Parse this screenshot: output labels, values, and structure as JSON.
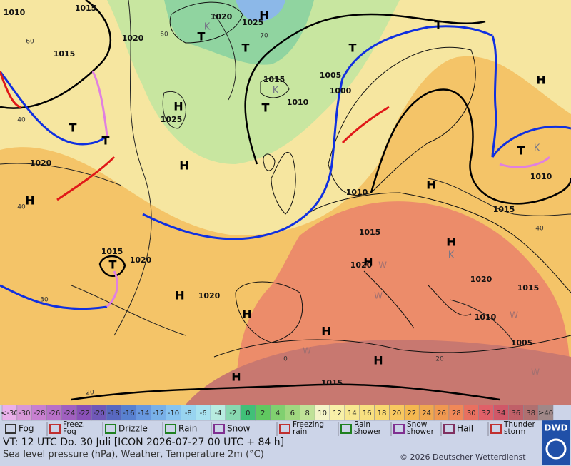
{
  "map": {
    "pressure_labels": [
      "1015",
      "1010",
      "1020",
      "1025",
      "1020",
      "1015",
      "1015",
      "1005",
      "1000",
      "1010",
      "1025",
      "1020",
      "1010",
      "1015",
      "1010",
      "1015",
      "1015",
      "1020",
      "1020",
      "1020",
      "1015",
      "1020",
      "1010",
      "1005",
      "1015"
    ],
    "isotherm_labels": [
      "40",
      "40",
      "30",
      "20",
      "60",
      "60",
      "70",
      "40",
      "20",
      "0"
    ],
    "system_labels": [
      "H",
      "T",
      "T",
      "H",
      "T",
      "T",
      "H",
      "H",
      "T",
      "K",
      "T",
      "T",
      "H",
      "H",
      "T",
      "K",
      "H",
      "K",
      "T",
      "H",
      "H",
      "H",
      "H",
      "H",
      "K",
      "H",
      "W",
      "W",
      "W",
      "W",
      "W"
    ]
  },
  "colorbar": [
    {
      "label": "<-30",
      "color": "#eab0ea"
    },
    {
      "label": "-30",
      "color": "#d898d8"
    },
    {
      "label": "-28",
      "color": "#c880d0"
    },
    {
      "label": "-26",
      "color": "#b870c8"
    },
    {
      "label": "-24",
      "color": "#a060c0"
    },
    {
      "label": "-22",
      "color": "#8a50b8"
    },
    {
      "label": "-20",
      "color": "#7058b8"
    },
    {
      "label": "-18",
      "color": "#5868c0"
    },
    {
      "label": "-16",
      "color": "#5880d0"
    },
    {
      "label": "-14",
      "color": "#6898e0"
    },
    {
      "label": "-12",
      "color": "#78b0e8"
    },
    {
      "label": "-10",
      "color": "#88c4f0"
    },
    {
      "label": "-8",
      "color": "#98d4f0"
    },
    {
      "label": "-6",
      "color": "#a8e2f0"
    },
    {
      "label": "-4",
      "color": "#b8ece0"
    },
    {
      "label": "-2",
      "color": "#88d8b0"
    },
    {
      "label": "0",
      "color": "#40c078"
    },
    {
      "label": "2",
      "color": "#60c860"
    },
    {
      "label": "4",
      "color": "#80d070"
    },
    {
      "label": "6",
      "color": "#a0d880"
    },
    {
      "label": "8",
      "color": "#c0e298"
    },
    {
      "label": "10",
      "color": "#f4f4c8"
    },
    {
      "label": "12",
      "color": "#f8f0a8"
    },
    {
      "label": "14",
      "color": "#f8e890"
    },
    {
      "label": "16",
      "color": "#f8e080"
    },
    {
      "label": "18",
      "color": "#f8d870"
    },
    {
      "label": "20",
      "color": "#f8c860"
    },
    {
      "label": "22",
      "color": "#f4b850"
    },
    {
      "label": "24",
      "color": "#f0a850"
    },
    {
      "label": "26",
      "color": "#f09850"
    },
    {
      "label": "28",
      "color": "#f08858"
    },
    {
      "label": "30",
      "color": "#e87060"
    },
    {
      "label": "32",
      "color": "#e06068"
    },
    {
      "label": "34",
      "color": "#d05868"
    },
    {
      "label": "36",
      "color": "#c06068"
    },
    {
      "label": "38",
      "color": "#b07070"
    },
    {
      "label": "≥40",
      "color": "#a08888"
    }
  ],
  "legend": [
    {
      "lines": [
        "Fog"
      ]
    },
    {
      "lines": [
        "Freez.",
        "Fog"
      ]
    },
    {
      "lines": [
        "Drizzle"
      ]
    },
    {
      "lines": [
        "Rain"
      ]
    },
    {
      "lines": [
        "Snow"
      ]
    },
    {
      "lines": [
        "Freezing",
        "rain"
      ]
    },
    {
      "lines": [
        "Rain",
        "shower"
      ]
    },
    {
      "lines": [
        "Snow",
        "shower"
      ]
    },
    {
      "lines": [
        "Hail"
      ]
    },
    {
      "lines": [
        "Thunder",
        "storm"
      ]
    }
  ],
  "footer": {
    "valid_time": "VT: 12 UTC Do.  30 Juli [ICON 2026-07-27  00 UTC + 84 h]",
    "description": "Sea level pressure (hPa), Weather, Temperature 2m (°C)",
    "copyright": "© 2026 Deutscher Wetterdienst",
    "logo": "DWD"
  }
}
